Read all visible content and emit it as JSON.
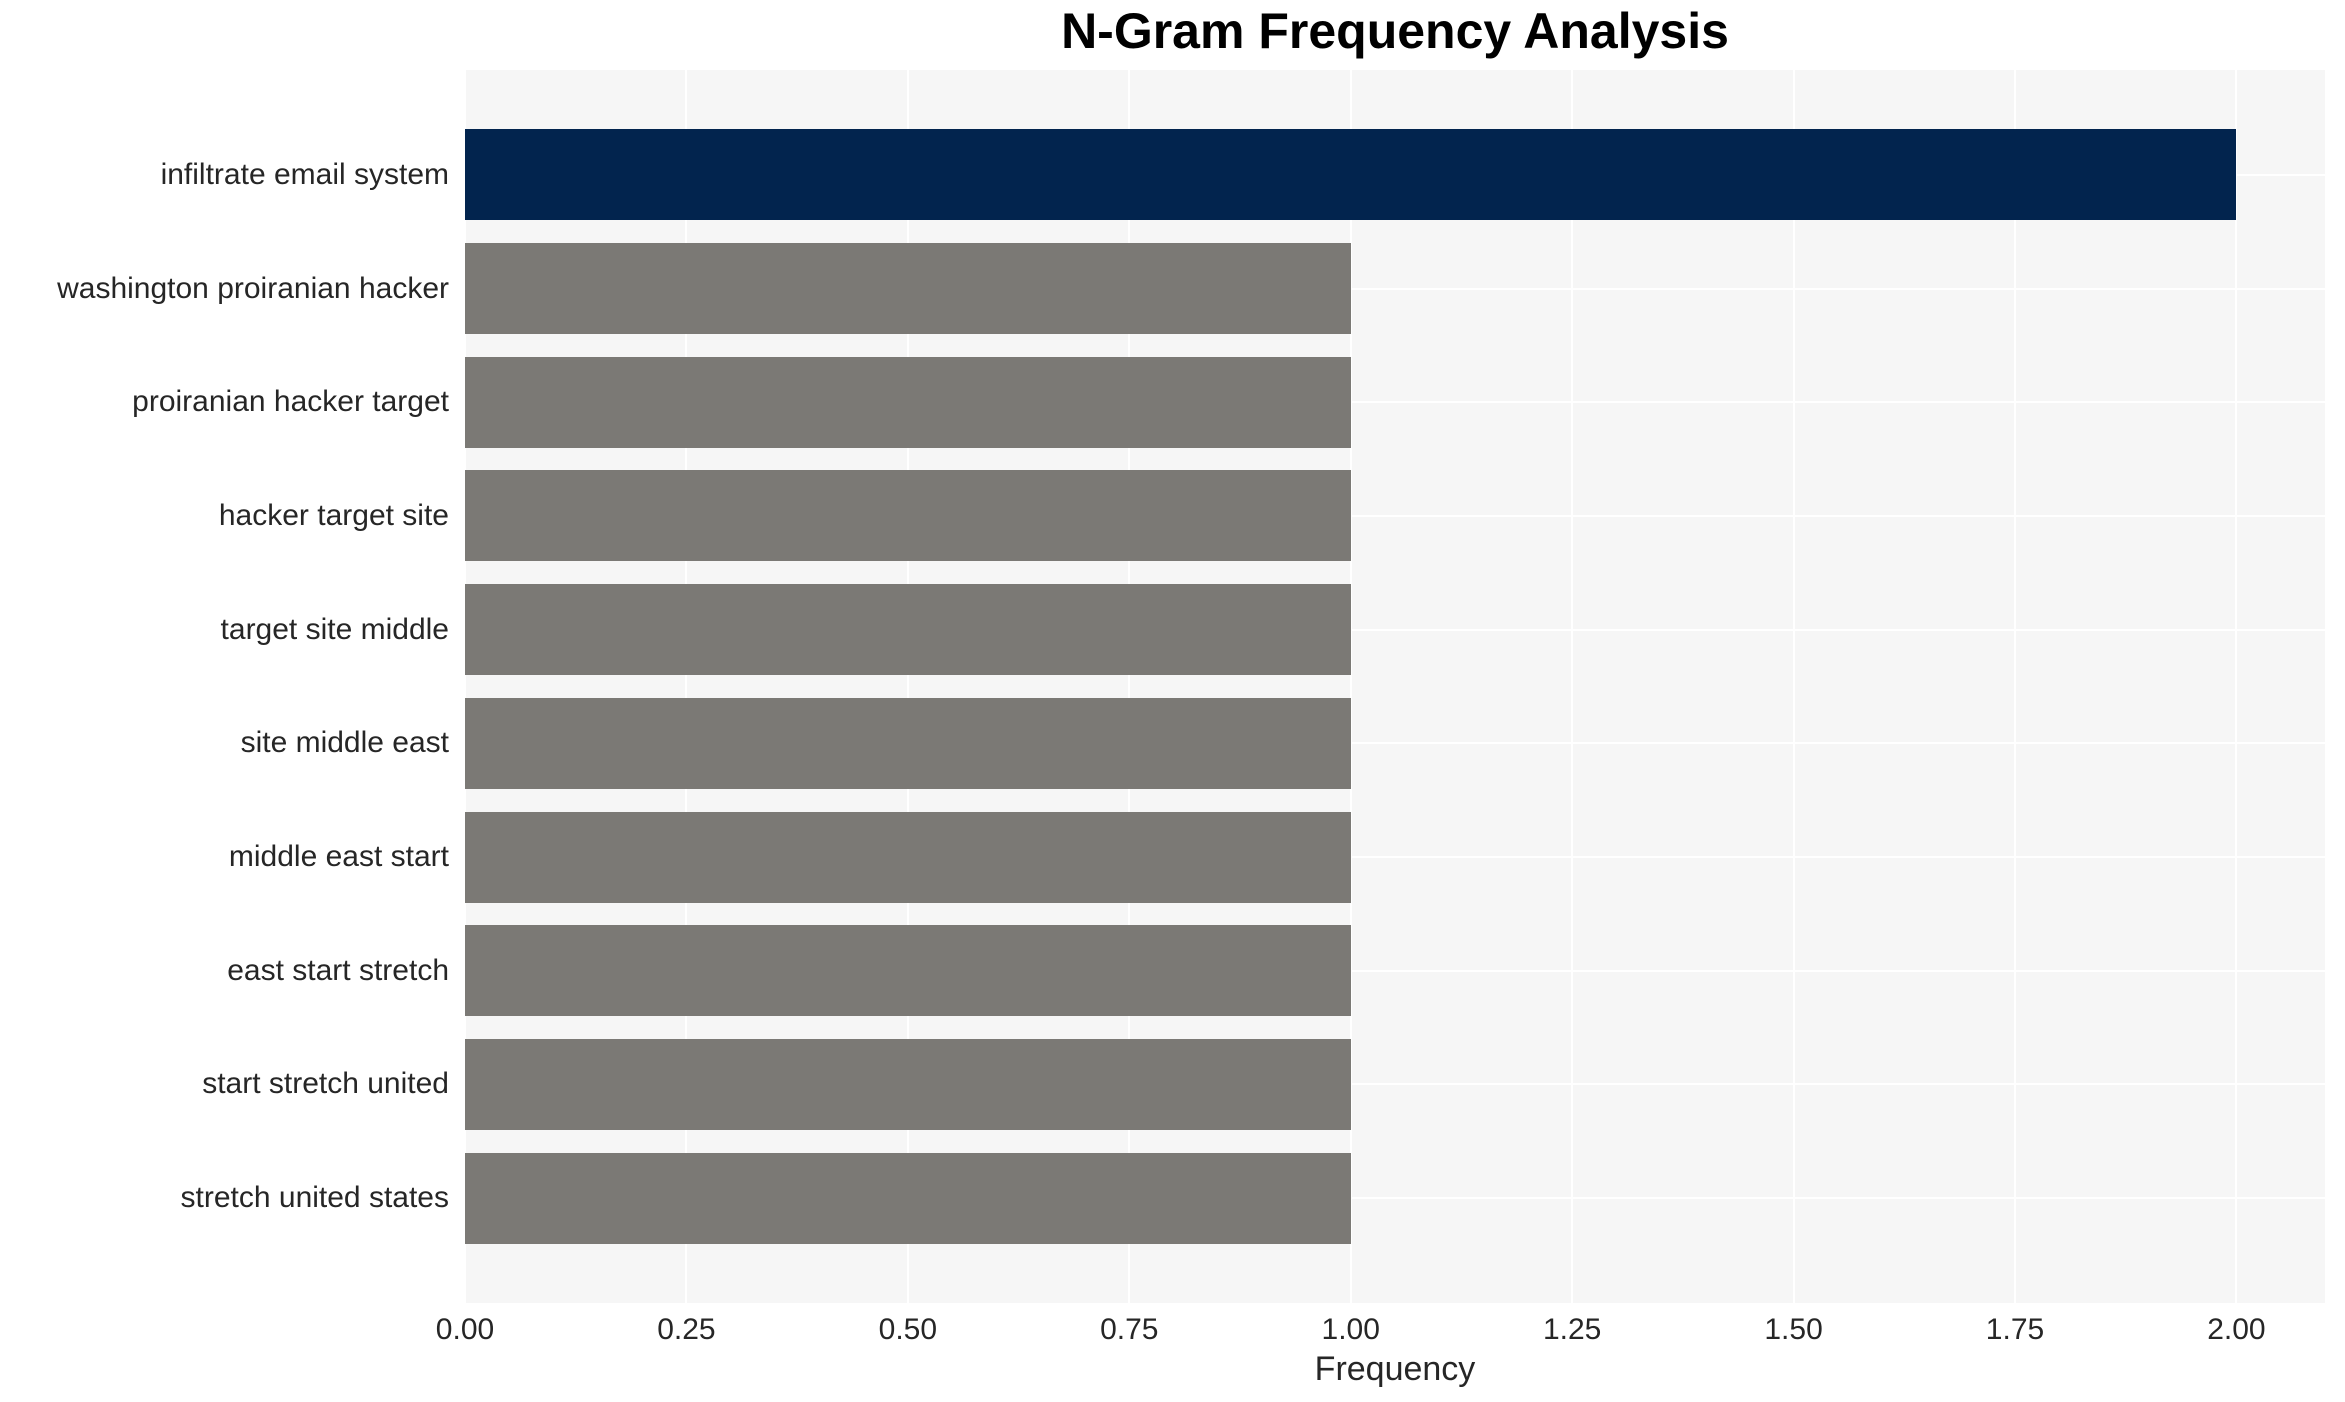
{
  "chart_data": {
    "type": "bar",
    "orientation": "horizontal",
    "title": "N-Gram Frequency Analysis",
    "xlabel": "Frequency",
    "ylabel": "",
    "categories": [
      "infiltrate email system",
      "washington proiranian hacker",
      "proiranian hacker target",
      "hacker target site",
      "target site middle",
      "site middle east",
      "middle east start",
      "east start stretch",
      "start stretch united",
      "stretch united states"
    ],
    "values": [
      2.0,
      1.0,
      1.0,
      1.0,
      1.0,
      1.0,
      1.0,
      1.0,
      1.0,
      1.0
    ],
    "bar_colors": [
      "#02244e",
      "#7b7975",
      "#7b7975",
      "#7b7975",
      "#7b7975",
      "#7b7975",
      "#7b7975",
      "#7b7975",
      "#7b7975",
      "#7b7975"
    ],
    "highlight_color": "#02244e",
    "default_bar_color": "#7b7975",
    "xlim": [
      0,
      2.1
    ],
    "xticks": [
      "0.00",
      "0.25",
      "0.50",
      "0.75",
      "1.00",
      "1.25",
      "1.50",
      "1.75",
      "2.00"
    ],
    "xtick_values": [
      0,
      0.25,
      0.5,
      0.75,
      1.0,
      1.25,
      1.5,
      1.75,
      2.0
    ],
    "grid": true,
    "legend": "none",
    "plot_background": "#f6f6f6",
    "gridline_color": "#ffffff",
    "text_color": "#262626",
    "title_color": "#000000"
  }
}
